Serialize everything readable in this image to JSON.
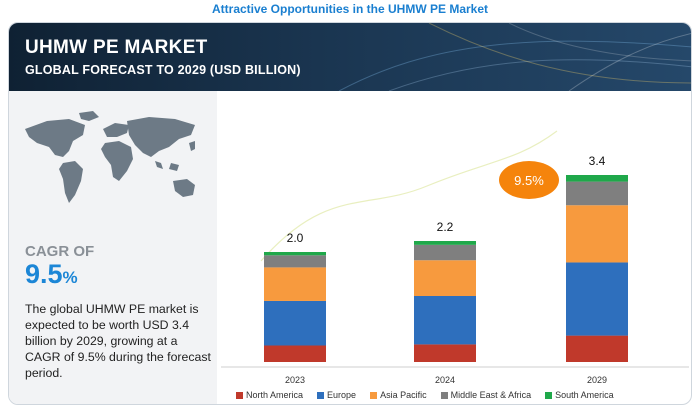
{
  "header": {
    "top_title": "Attractive Opportunities in the UHMW PE Market",
    "market_title": "UHMW PE MARKET",
    "market_subtitle": "GLOBAL FORECAST TO 2029 (USD BILLION)"
  },
  "left_panel": {
    "cagr_label": "CAGR OF",
    "cagr_value": "9.5",
    "cagr_unit": "%",
    "description": "The global UHMW PE market is expected to be worth USD 3.4 billion by 2029, growing at a CAGR of 9.5% during the forecast period."
  },
  "callout": {
    "text": "9.5%",
    "color": "#f5840c"
  },
  "chart_data": {
    "type": "bar",
    "stacked": true,
    "categories": [
      "2023",
      "2024",
      "2029"
    ],
    "totals": [
      "2.0",
      "2.2",
      "3.4"
    ],
    "total_values": [
      2.0,
      2.2,
      3.4
    ],
    "series": [
      {
        "name": "North America",
        "color": "#c0392b",
        "values": [
          0.3,
          0.32,
          0.48
        ]
      },
      {
        "name": "Europe",
        "color": "#2e6fbd",
        "values": [
          0.81,
          0.88,
          1.33
        ]
      },
      {
        "name": "Asia Pacific",
        "color": "#f79a3e",
        "values": [
          0.61,
          0.65,
          1.04
        ]
      },
      {
        "name": "Middle East & Africa",
        "color": "#7f7f7f",
        "values": [
          0.22,
          0.28,
          0.43
        ]
      },
      {
        "name": "South America",
        "color": "#1fa84a",
        "values": [
          0.06,
          0.07,
          0.12
        ]
      }
    ],
    "legend_position": "bottom"
  }
}
